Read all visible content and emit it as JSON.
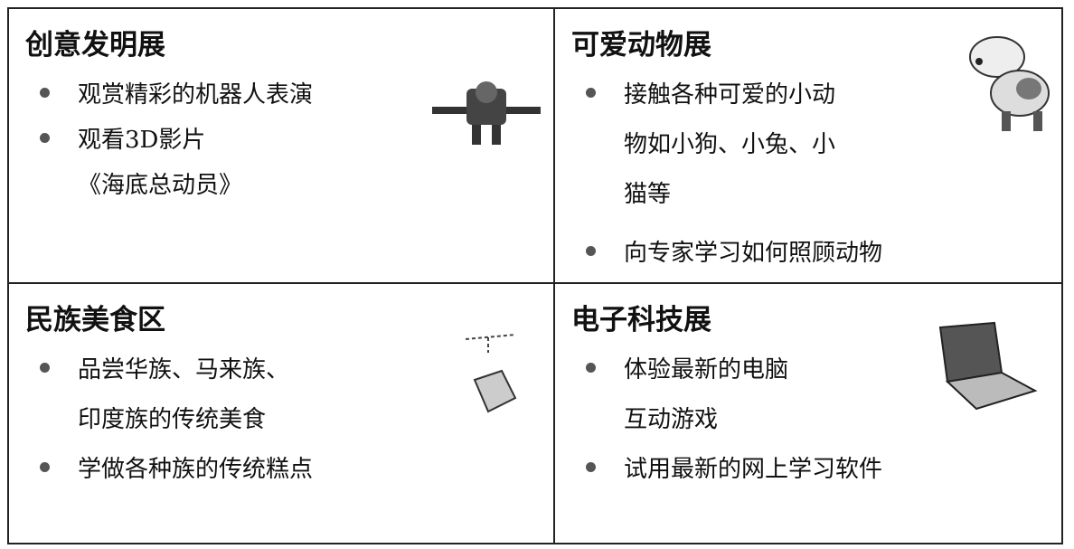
{
  "cells": [
    {
      "title": "创意发明展",
      "items": [
        [
          "观赏精彩的机器人表演"
        ],
        [
          "观看3D影片",
          "《海底总动员》"
        ]
      ]
    },
    {
      "title": "可爱动物展",
      "items": [
        [
          "接触各种可爱的小动",
          "物如小狗、小兔、小",
          "猫等"
        ],
        [
          "向专家学习如何照顾动物"
        ]
      ]
    },
    {
      "title": "民族美食区",
      "items": [
        [
          "品尝华族、马来族、",
          "印度族的传统美食"
        ],
        [
          "学做各种族的传统糕点"
        ]
      ]
    },
    {
      "title": "电子科技展",
      "items": [
        [
          "体验最新的电脑",
          "互动游戏"
        ],
        [
          "试用最新的网上学习软件"
        ]
      ]
    }
  ]
}
